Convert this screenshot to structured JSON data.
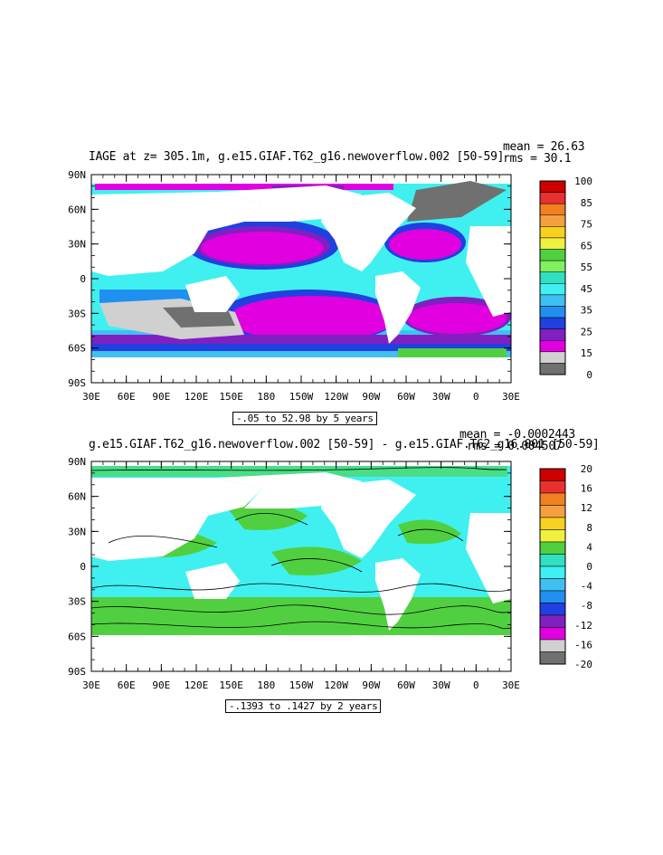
{
  "panels": [
    {
      "title": "IAGE at z= 305.1m, g.e15.GIAF.T62_g16.newoverflow.002 [50-59]",
      "mean_label": "mean = 26.63",
      "rms_label": "rms = 30.1",
      "range_label": "-.05 to 52.98 by 5 years",
      "colorbar": {
        "labels": [
          "100",
          "85",
          "75",
          "65",
          "55",
          "45",
          "35",
          "25",
          "15",
          "0"
        ],
        "colors": [
          "#cc0000",
          "#e83030",
          "#f08020",
          "#f5a040",
          "#f7d020",
          "#f0f040",
          "#50d040",
          "#80f060",
          "#30e0c0",
          "#40f0f0",
          "#40c0f0",
          "#2090f0",
          "#2040e0",
          "#8020c0",
          "#e000e0",
          "#d0d0d0",
          "#707070"
        ]
      }
    },
    {
      "title": "g.e15.GIAF.T62_g16.newoverflow.002 [50-59] - g.e15.GIAF.T62_g16.001 [50-59]",
      "mean_label": "mean = -0.0002443",
      "rms_label": "rms = 0.004507",
      "range_label": "-.1393 to .1427 by 2 years",
      "colorbar": {
        "labels": [
          "20",
          "16",
          "12",
          "8",
          "4",
          "0",
          "-4",
          "-8",
          "-12",
          "-16",
          "-20"
        ],
        "colors": [
          "#cc0000",
          "#e83030",
          "#f08020",
          "#f5a040",
          "#f7d020",
          "#f0f040",
          "#50d040",
          "#30e0c0",
          "#40f0f0",
          "#40c0f0",
          "#2090f0",
          "#2040e0",
          "#8020c0",
          "#e000e0",
          "#d0d0d0",
          "#707070"
        ]
      }
    }
  ],
  "axes": {
    "lat_labels": [
      "90N",
      "60N",
      "30N",
      "0",
      "30S",
      "60S",
      "90S"
    ],
    "lon_labels": [
      "30E",
      "60E",
      "90E",
      "120E",
      "150E",
      "180",
      "150W",
      "120W",
      "90W",
      "60W",
      "30W",
      "0",
      "30E"
    ]
  },
  "palette": {
    "age_ocean": "#40f0f0",
    "age_gyre": "#e000e0",
    "diff_ocean": "#40f0f0",
    "diff_positive": "#50d040"
  }
}
